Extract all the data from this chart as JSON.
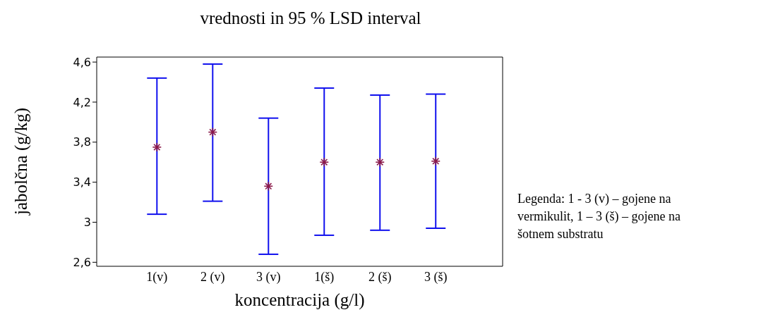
{
  "chart_data": {
    "type": "scatter",
    "title": "vrednosti in 95 % LSD interval",
    "xlabel": "koncentracija (g/l)",
    "ylabel": "jabolčna (g/kg)",
    "categories": [
      "1(v)",
      "2 (v)",
      "3 (v)",
      "1(š)",
      "2 (š)",
      "3 (š)"
    ],
    "series": [
      {
        "color": "#8b1a4a",
        "values": [
          3.75,
          3.9,
          3.36,
          3.6,
          3.6,
          3.61
        ],
        "errors": [
          [
            3.08,
            4.44
          ],
          [
            3.21,
            4.58
          ],
          [
            2.68,
            4.04
          ],
          [
            2.87,
            4.34
          ],
          [
            2.92,
            4.27
          ],
          [
            2.94,
            4.28
          ]
        ]
      }
    ],
    "ylim": [
      2.56,
      4.65
    ],
    "yticks": [
      {
        "value": 2.6,
        "label": "2,6"
      },
      {
        "value": 3,
        "label": "3"
      },
      {
        "value": 3.4,
        "label": "3,4"
      },
      {
        "value": 3.8,
        "label": "3,8"
      },
      {
        "value": 4.2,
        "label": "4,2"
      },
      {
        "value": 4.6,
        "label": "4,6"
      }
    ],
    "grid": false,
    "legend": false,
    "marker": "cross",
    "annotations": [
      "Legenda: 1 - 3 (v) – gojene na vermikulit, 1 – 3 (š) – gojene na šotnem substratu"
    ]
  }
}
